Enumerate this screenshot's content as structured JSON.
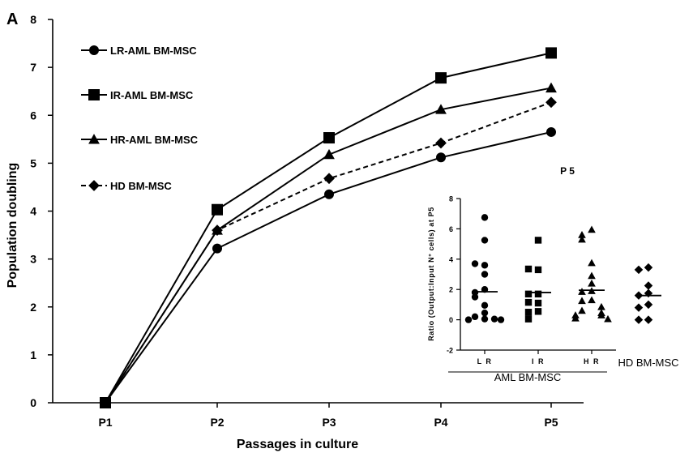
{
  "panel_label": "A",
  "chart_data": [
    {
      "type": "line",
      "title": "",
      "xlabel": "Passages in culture",
      "ylabel": "Population doubling",
      "categories": [
        "P1",
        "P2",
        "P3",
        "P4",
        "P5"
      ],
      "ylim": [
        0,
        8
      ],
      "yticks": [
        "0",
        "1",
        "2",
        "3",
        "4",
        "5",
        "6",
        "7",
        "8"
      ],
      "grid": false,
      "legend_position": "top-left",
      "series": [
        {
          "name": "LR-AML BM-MSC",
          "marker": "circle",
          "dash": false,
          "values": [
            0,
            3.22,
            4.35,
            5.12,
            5.65
          ]
        },
        {
          "name": "IR-AML BM-MSC",
          "marker": "square",
          "dash": false,
          "values": [
            0,
            4.03,
            5.53,
            6.78,
            7.3
          ]
        },
        {
          "name": "HR-AML BM-MSC",
          "marker": "triangle",
          "dash": false,
          "values": [
            0,
            3.6,
            5.18,
            6.12,
            6.57
          ]
        },
        {
          "name": "HD BM-MSC",
          "marker": "diamond",
          "dash": true,
          "values": [
            0,
            3.6,
            4.68,
            5.42,
            6.27
          ]
        }
      ]
    },
    {
      "type": "scatter",
      "title": "P 5",
      "xlabel": "",
      "ylabel": "Ratio (Output:Input N° cells) at P5",
      "ylim": [
        -2,
        8
      ],
      "yticks": [
        "-2",
        "0",
        "2",
        "4",
        "6",
        "8"
      ],
      "group_label": "AML BM-MSC",
      "groups": [
        {
          "label": "L R",
          "marker": "circle",
          "mean": 1.85,
          "values": [
            6.75,
            5.25,
            3.6,
            3.7,
            3.0,
            2.0,
            1.8,
            1.5,
            0.95,
            0.45,
            0.2,
            0.05,
            0.0,
            0.0,
            0.05
          ]
        },
        {
          "label": "I R",
          "marker": "square",
          "mean": 1.8,
          "values": [
            5.25,
            3.3,
            3.35,
            1.7,
            1.7,
            1.1,
            1.15,
            0.55,
            0.5,
            0.05
          ]
        },
        {
          "label": "H R",
          "marker": "triangle",
          "mean": 1.95,
          "values": [
            5.95,
            5.6,
            5.3,
            3.75,
            2.9,
            2.4,
            1.9,
            1.85,
            1.3,
            1.25,
            0.85,
            0.6,
            0.45,
            0.3,
            0.3,
            0.1,
            0.05
          ]
        },
        {
          "label": "HD BM-MSC",
          "marker": "diamond",
          "mean": 1.6,
          "values": [
            3.45,
            3.3,
            2.25,
            1.75,
            1.6,
            1.0,
            0.8,
            0.0,
            0.0
          ]
        }
      ]
    }
  ]
}
